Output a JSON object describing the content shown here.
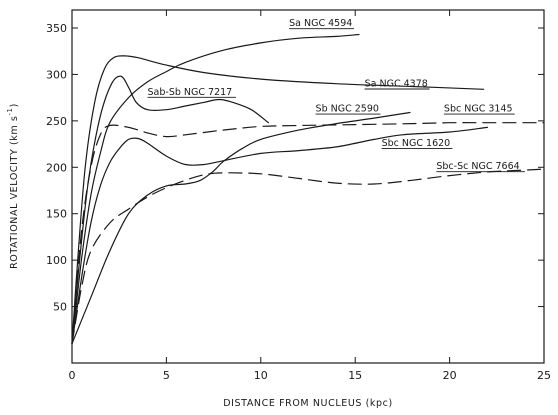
{
  "chart_data": {
    "type": "line",
    "title": "",
    "xlabel": "DISTANCE FROM NUCLEUS (kpc)",
    "ylabel_main": "ROTATIONAL VELOCITY (km s",
    "ylabel_sup": "-1",
    "ylabel_close": ")",
    "xlim": [
      0,
      25
    ],
    "ylim": [
      0,
      360
    ],
    "grid": false,
    "legend": "none",
    "xticks": [
      0,
      5,
      10,
      15,
      20,
      25
    ],
    "yticks": [
      50,
      100,
      150,
      200,
      250,
      300,
      350
    ],
    "series": [
      {
        "name": "Sa NGC 4594",
        "style": "solid",
        "x": [
          0,
          0.5,
          1,
          1.5,
          2,
          3,
          4,
          5,
          6,
          8,
          10,
          12,
          14,
          15.2
        ],
        "y": [
          10,
          100,
          170,
          215,
          248,
          275,
          292,
          303,
          313,
          326,
          334,
          339,
          341,
          343
        ]
      },
      {
        "name": "Sa NGC 4378",
        "style": "solid",
        "x": [
          0,
          0.3,
          0.7,
          1.2,
          1.7,
          2.2,
          2.8,
          3.5,
          5,
          7,
          10,
          14,
          18,
          21.8
        ],
        "y": [
          10,
          100,
          200,
          270,
          305,
          318,
          320,
          318,
          310,
          302,
          295,
          290,
          287,
          284
        ]
      },
      {
        "name": "Sab-Sb NGC 7217",
        "style": "solid",
        "x": [
          0,
          0.4,
          0.9,
          1.5,
          2.1,
          2.6,
          3,
          3.4,
          4,
          5,
          6,
          7,
          7.8,
          8.5,
          9.5,
          10.4
        ],
        "y": [
          10,
          100,
          190,
          255,
          290,
          298,
          286,
          270,
          262,
          262,
          266,
          270,
          273,
          270,
          262,
          248
        ]
      },
      {
        "name": "Sb NGC 2590",
        "style": "solid",
        "x": [
          0,
          1,
          2,
          3,
          4,
          5,
          6,
          6.8,
          7.5,
          8,
          9,
          10,
          12,
          14,
          16,
          17.9
        ],
        "y": [
          10,
          60,
          110,
          150,
          170,
          180,
          182,
          186,
          196,
          206,
          220,
          230,
          240,
          247,
          253,
          259
        ]
      },
      {
        "name": "Sbc NGC 3145",
        "style": "dashed",
        "x": [
          0,
          0.5,
          1,
          1.5,
          2,
          3,
          4,
          5,
          6,
          8,
          10,
          12,
          15,
          18,
          20,
          22,
          25
        ],
        "y": [
          10,
          130,
          200,
          235,
          245,
          243,
          237,
          233,
          235,
          240,
          244,
          245,
          246,
          247,
          248,
          248,
          248
        ]
      },
      {
        "name": "Sbc NGC 1620",
        "style": "solid",
        "x": [
          0,
          0.5,
          1,
          1.5,
          2,
          2.5,
          3,
          3.5,
          4,
          5,
          6,
          7,
          8,
          10,
          12,
          14,
          16,
          17.5,
          20,
          22
        ],
        "y": [
          10,
          80,
          140,
          180,
          205,
          220,
          230,
          231,
          226,
          212,
          203,
          203,
          207,
          215,
          218,
          222,
          230,
          235,
          238,
          243
        ]
      },
      {
        "name": "Sbc-Sc NGC 7664",
        "style": "dashed",
        "x": [
          0,
          0.5,
          1,
          2,
          3,
          4,
          5,
          6,
          7,
          8,
          10,
          12,
          14,
          16,
          18,
          20,
          22,
          24,
          25
        ],
        "y": [
          10,
          70,
          110,
          140,
          155,
          168,
          178,
          186,
          192,
          194,
          193,
          188,
          183,
          182,
          186,
          191,
          195,
          197,
          198
        ]
      }
    ]
  }
}
